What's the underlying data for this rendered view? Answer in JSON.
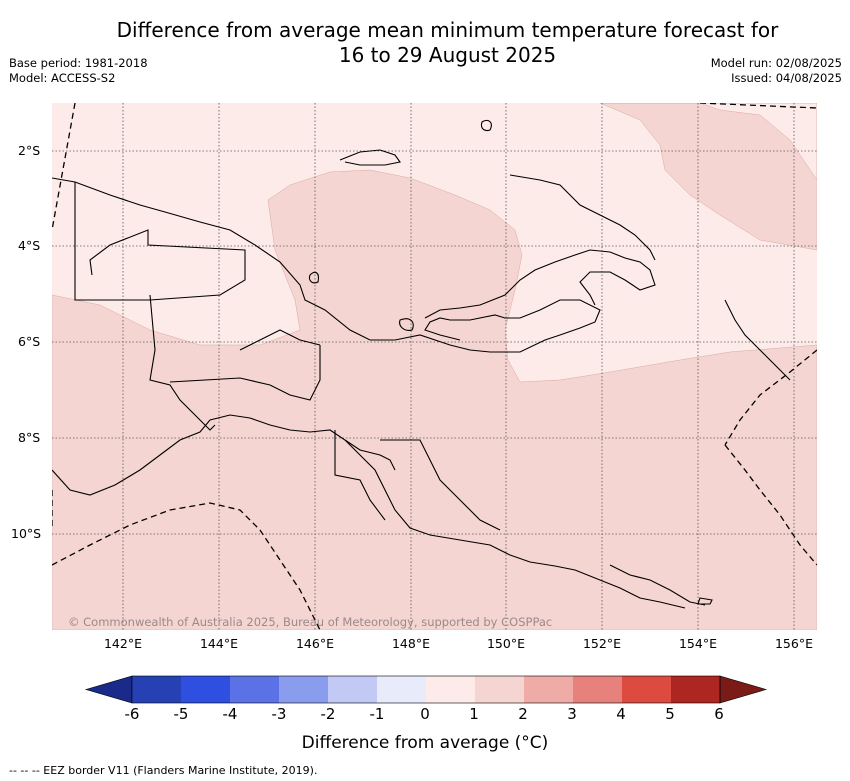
{
  "header": {
    "title_line1": "Difference from average mean minimum temperature forecast for",
    "title_line2": "16 to 29 August 2025",
    "base_period": "Base period: 1981-2018",
    "model": "Model: ACCESS-S2",
    "model_run": "Model run: 02/08/2025",
    "issued": "Issued: 04/08/2025"
  },
  "map": {
    "lat_labels": [
      "2°S",
      "4°S",
      "6°S",
      "8°S",
      "10°S"
    ],
    "lon_labels": [
      "142°E",
      "144°E",
      "146°E",
      "148°E",
      "150°E",
      "152°E",
      "154°E",
      "156°E"
    ],
    "copyright": "© Commonwealth of Australia 2025, Bureau of Meteorology, supported by COSPPac",
    "colors": {
      "band_0_to_1": "#fcebe9",
      "band_1_to_2": "#f5d5d1",
      "coast": "#000000",
      "grid": "#555555"
    }
  },
  "colorbar": {
    "ticks": [
      "-6",
      "-5",
      "-4",
      "-3",
      "-2",
      "-1",
      "0",
      "1",
      "2",
      "3",
      "4",
      "5",
      "6"
    ],
    "colors": [
      "#1a2a8a",
      "#2641b4",
      "#2e4fe0",
      "#5a72e6",
      "#8a9ced",
      "#c2c9f5",
      "#e8ebfa",
      "#fcebe9",
      "#f5d5d1",
      "#efaba6",
      "#e6817b",
      "#dc4a40",
      "#ae2621",
      "#7a1b18"
    ],
    "label": "Difference from average (°C)"
  },
  "footer": {
    "eez_note": "-- -- -- EEZ border V11 (Flanders Marine Institute, 2019)."
  }
}
